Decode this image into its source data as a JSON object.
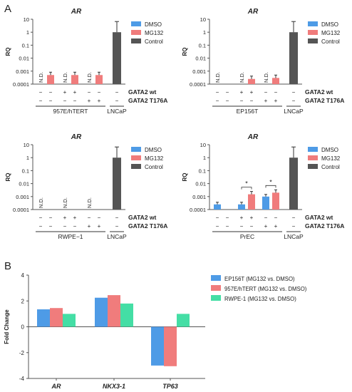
{
  "panels": {
    "A": "A",
    "B": "B"
  },
  "colors": {
    "dmso": "#4e9be6",
    "mg132": "#f07c7c",
    "control": "#555555",
    "green": "#44dea5",
    "axis": "#555555"
  },
  "chart_data": [
    {
      "type": "bar",
      "title": "AR",
      "ylabel": "RQ",
      "yscale": "log",
      "yticks": [
        "0.0001",
        "0.001",
        "0.01",
        "0.1",
        "1",
        "10"
      ],
      "ylim": [
        0.0001,
        10
      ],
      "legend": [
        "DMSO",
        "MG132",
        "Control"
      ],
      "legend_position": "right",
      "cell_line": "957E/hTERT",
      "reference": "LNCaP",
      "row_labels": [
        "GATA2 wt",
        "GATA2 T176A"
      ],
      "conditions": [
        {
          "gata2_wt": [
            "−",
            "−"
          ],
          "gata2_t176a": [
            "−",
            "−"
          ],
          "dmso": null,
          "mg132": 0.0005,
          "dmso_label": "N.D."
        },
        {
          "gata2_wt": [
            "+",
            "+"
          ],
          "gata2_t176a": [
            "−",
            "−"
          ],
          "dmso": null,
          "mg132": 0.0005,
          "dmso_label": "N.D."
        },
        {
          "gata2_wt": [
            "−",
            "−"
          ],
          "gata2_t176a": [
            "+",
            "+"
          ],
          "dmso": null,
          "mg132": 0.0005,
          "dmso_label": "N.D."
        }
      ],
      "control_marks": {
        "gata2_wt": "−",
        "gata2_t176a": "−"
      },
      "control": 1.0,
      "significance": []
    },
    {
      "type": "bar",
      "title": "AR",
      "ylabel": "RQ",
      "yscale": "log",
      "yticks": [
        "0.0001",
        "0.001",
        "0.01",
        "0.1",
        "1",
        "10"
      ],
      "ylim": [
        0.0001,
        10
      ],
      "legend": [
        "DMSO",
        "MG132",
        "Control"
      ],
      "legend_position": "right",
      "cell_line": "EP156T",
      "reference": "LNCaP",
      "row_labels": [
        "GATA2 wt",
        "GATA2 T176A"
      ],
      "conditions": [
        {
          "gata2_wt": [
            "−",
            "−"
          ],
          "gata2_t176a": [
            "−",
            "−"
          ],
          "dmso": null,
          "mg132": null,
          "dmso_label": "N.D."
        },
        {
          "gata2_wt": [
            "+",
            "+"
          ],
          "gata2_t176a": [
            "−",
            "−"
          ],
          "dmso": null,
          "mg132": 0.00025,
          "dmso_label": "N.D."
        },
        {
          "gata2_wt": [
            "−",
            "−"
          ],
          "gata2_t176a": [
            "+",
            "+"
          ],
          "dmso": null,
          "mg132": 0.0003,
          "dmso_label": "N.D."
        }
      ],
      "control_marks": {
        "gata2_wt": "−",
        "gata2_t176a": "−"
      },
      "control": 1.0,
      "significance": []
    },
    {
      "type": "bar",
      "title": "AR",
      "ylabel": "RQ",
      "yscale": "log",
      "yticks": [
        "0.0001",
        "0.001",
        "0.01",
        "0.1",
        "1",
        "10"
      ],
      "ylim": [
        0.0001,
        10
      ],
      "legend": [
        "DMSO",
        "MG132",
        "Control"
      ],
      "legend_position": "right",
      "cell_line": "RWPE−1",
      "reference": "LNCaP",
      "row_labels": [
        "GATA2 wt",
        "GATA2 T176A"
      ],
      "conditions": [
        {
          "gata2_wt": [
            "−",
            "−"
          ],
          "gata2_t176a": [
            "−",
            "−"
          ],
          "dmso": null,
          "mg132": null,
          "dmso_label": "N.D."
        },
        {
          "gata2_wt": [
            "+",
            "+"
          ],
          "gata2_t176a": [
            "−",
            "−"
          ],
          "dmso": null,
          "mg132": null,
          "dmso_label": "N.D."
        },
        {
          "gata2_wt": [
            "−",
            "−"
          ],
          "gata2_t176a": [
            "+",
            "+"
          ],
          "dmso": null,
          "mg132": null,
          "dmso_label": "N.D."
        }
      ],
      "control_marks": {
        "gata2_wt": "−",
        "gata2_t176a": "−"
      },
      "control": 1.0,
      "significance": []
    },
    {
      "type": "bar",
      "title": "AR",
      "ylabel": "RQ",
      "yscale": "log",
      "yticks": [
        "0.0001",
        "0.001",
        "0.01",
        "0.1",
        "1",
        "10"
      ],
      "ylim": [
        0.0001,
        10
      ],
      "legend": [
        "DMSO",
        "MG132",
        "Control"
      ],
      "legend_position": "right",
      "cell_line": "PrEC",
      "reference": "LNCaP",
      "row_labels": [
        "GATA2 wt",
        "GATA2 T176A"
      ],
      "conditions": [
        {
          "gata2_wt": [
            "−",
            "−"
          ],
          "gata2_t176a": [
            "−",
            "−"
          ],
          "dmso": 0.00025,
          "mg132": null,
          "dmso_label": ""
        },
        {
          "gata2_wt": [
            "+",
            "+"
          ],
          "gata2_t176a": [
            "−",
            "−"
          ],
          "dmso": 0.00025,
          "mg132": 0.0015,
          "dmso_label": ""
        },
        {
          "gata2_wt": [
            "−",
            "−"
          ],
          "gata2_t176a": [
            "+",
            "+"
          ],
          "dmso": 0.001,
          "mg132": 0.002,
          "dmso_label": ""
        }
      ],
      "control_marks": {
        "gata2_wt": "−",
        "gata2_t176a": "−"
      },
      "control": 1.0,
      "significance": [
        "*",
        "*"
      ]
    },
    {
      "type": "bar",
      "ylabel": "Fold Change",
      "ylim": [
        -4,
        4
      ],
      "yticks": [
        "-4",
        "-2",
        "0",
        "2",
        "4"
      ],
      "categories": [
        "AR",
        "NKX3-1",
        "TP63"
      ],
      "legend_position": "right",
      "series": [
        {
          "name": "EP156T (MG132 vs. DMSO)",
          "values": [
            1.35,
            2.25,
            -3.0
          ]
        },
        {
          "name": "957E/hTERT (MG132 vs. DMSO)",
          "values": [
            1.45,
            2.45,
            -3.05
          ]
        },
        {
          "name": "RWPE-1 (MG132 vs. DMSO)",
          "values": [
            1.0,
            1.8,
            1.0
          ]
        }
      ]
    }
  ]
}
